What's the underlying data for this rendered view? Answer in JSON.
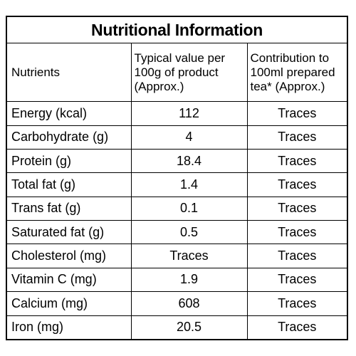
{
  "title": "Nutritional Information",
  "headers": {
    "nutrients": "Nutrients",
    "typical_value": [
      "Typical value per",
      "100g of product",
      "(Approx.)"
    ],
    "contribution": [
      "Contribution to",
      "100ml prepared",
      "tea* (Approx.)"
    ]
  },
  "rows": [
    {
      "nutrient": "Energy (kcal)",
      "value": "112",
      "contribution": "Traces"
    },
    {
      "nutrient": "Carbohydrate (g)",
      "value": "4",
      "contribution": "Traces"
    },
    {
      "nutrient": "Protein (g)",
      "value": "18.4",
      "contribution": "Traces"
    },
    {
      "nutrient": "Total fat (g)",
      "value": "1.4",
      "contribution": "Traces"
    },
    {
      "nutrient": "Trans fat (g)",
      "value": "0.1",
      "contribution": "Traces"
    },
    {
      "nutrient": "Saturated fat (g)",
      "value": "0.5",
      "contribution": "Traces"
    },
    {
      "nutrient": "Cholesterol (mg)",
      "value": "Traces",
      "contribution": "Traces"
    },
    {
      "nutrient": "Vitamin C (mg)",
      "value": "1.9",
      "contribution": "Traces"
    },
    {
      "nutrient": "Calcium (mg)",
      "value": "608",
      "contribution": "Traces"
    },
    {
      "nutrient": "Iron (mg)",
      "value": "20.5",
      "contribution": "Traces"
    }
  ]
}
